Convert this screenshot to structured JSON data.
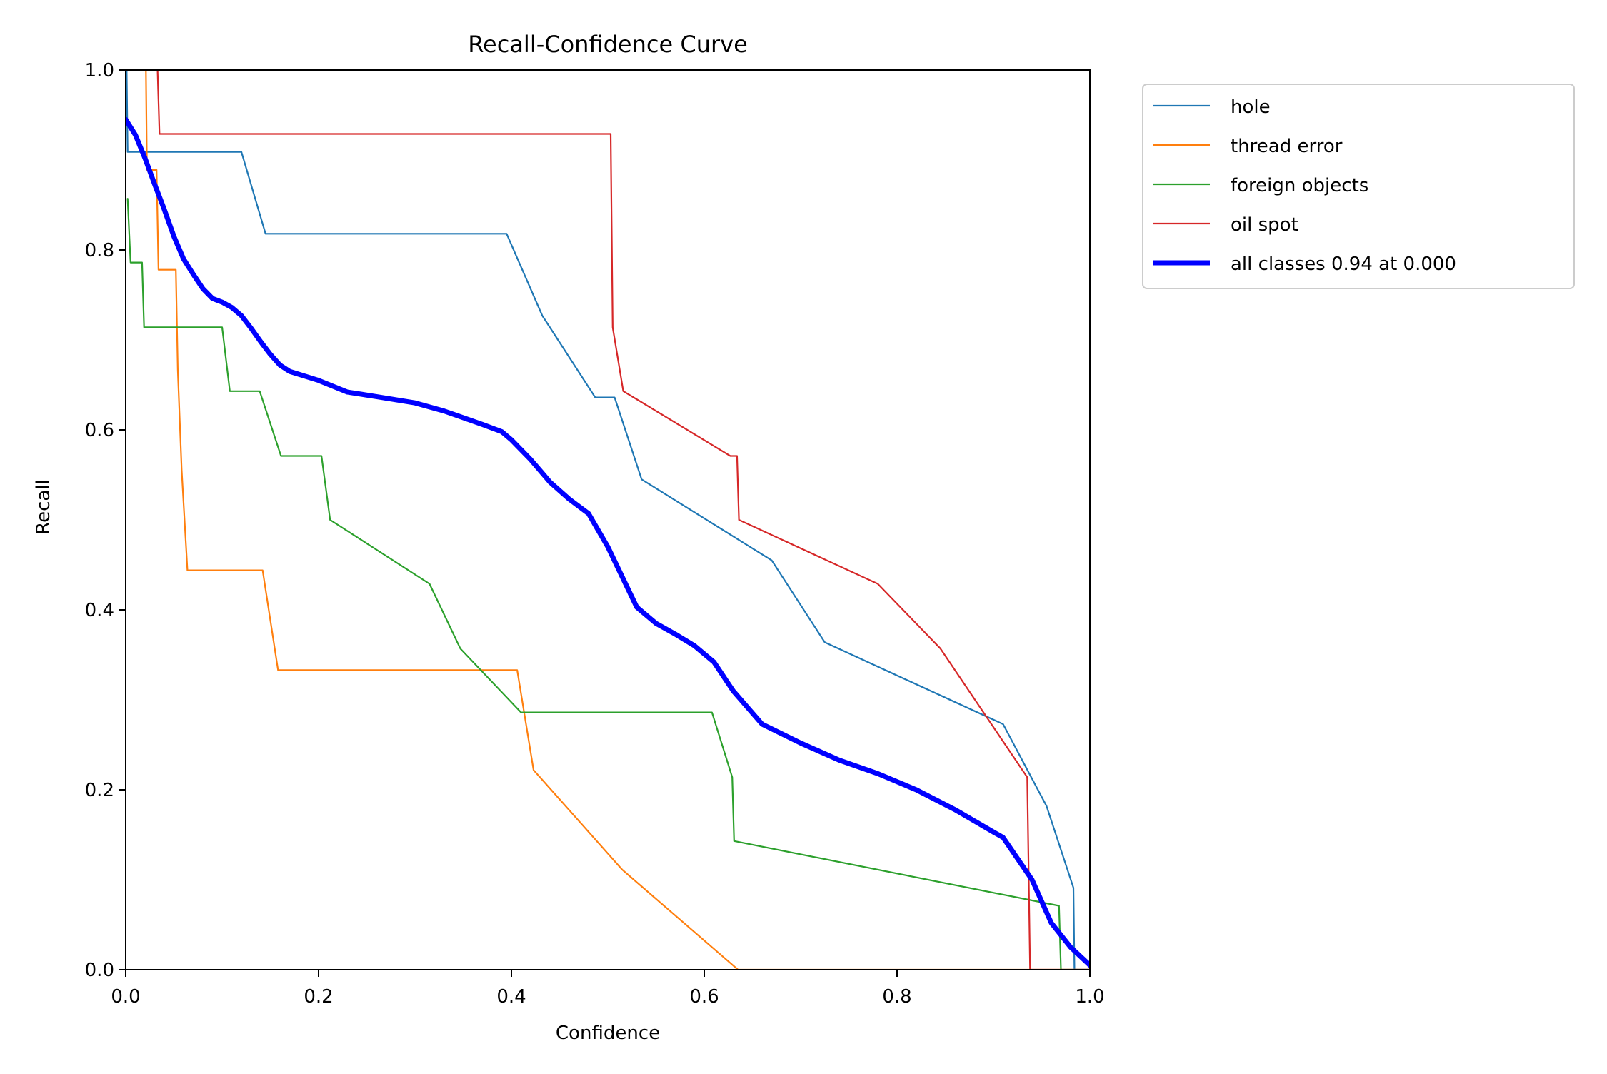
{
  "chart_data": {
    "type": "line",
    "title": "Recall-Confidence Curve",
    "xlabel": "Confidence",
    "ylabel": "Recall",
    "xlim": [
      0,
      1
    ],
    "ylim": [
      0,
      1
    ],
    "xticks": [
      "0.0",
      "0.2",
      "0.4",
      "0.6",
      "0.8",
      "1.0"
    ],
    "yticks": [
      "0.0",
      "0.2",
      "0.4",
      "0.6",
      "0.8",
      "1.0"
    ],
    "grid": false,
    "legend_position": "outside-top-right",
    "series": [
      {
        "name": "hole",
        "color": "#1f77b4",
        "bold": false,
        "points": [
          [
            0.001,
            1.0
          ],
          [
            0.002,
            0.909
          ],
          [
            0.12,
            0.909
          ],
          [
            0.145,
            0.818
          ],
          [
            0.395,
            0.818
          ],
          [
            0.432,
            0.727
          ],
          [
            0.487,
            0.636
          ],
          [
            0.507,
            0.636
          ],
          [
            0.535,
            0.545
          ],
          [
            0.67,
            0.455
          ],
          [
            0.725,
            0.364
          ],
          [
            0.91,
            0.273
          ],
          [
            0.955,
            0.182
          ],
          [
            0.983,
            0.091
          ],
          [
            0.984,
            0.0
          ],
          [
            1.0,
            0.0
          ]
        ]
      },
      {
        "name": "thread error",
        "color": "#ff7f0e",
        "bold": false,
        "points": [
          [
            0.021,
            1.0
          ],
          [
            0.022,
            0.889
          ],
          [
            0.032,
            0.889
          ],
          [
            0.034,
            0.778
          ],
          [
            0.052,
            0.778
          ],
          [
            0.054,
            0.667
          ],
          [
            0.058,
            0.556
          ],
          [
            0.064,
            0.444
          ],
          [
            0.142,
            0.444
          ],
          [
            0.158,
            0.333
          ],
          [
            0.406,
            0.333
          ],
          [
            0.423,
            0.222
          ],
          [
            0.515,
            0.111
          ],
          [
            0.635,
            0.0
          ],
          [
            1.0,
            0.0
          ]
        ]
      },
      {
        "name": "foreign objects",
        "color": "#2ca02c",
        "bold": false,
        "points": [
          [
            0.002,
            0.857
          ],
          [
            0.005,
            0.786
          ],
          [
            0.017,
            0.786
          ],
          [
            0.019,
            0.714
          ],
          [
            0.1,
            0.714
          ],
          [
            0.108,
            0.643
          ],
          [
            0.139,
            0.643
          ],
          [
            0.161,
            0.571
          ],
          [
            0.203,
            0.571
          ],
          [
            0.212,
            0.5
          ],
          [
            0.315,
            0.429
          ],
          [
            0.347,
            0.357
          ],
          [
            0.41,
            0.286
          ],
          [
            0.608,
            0.286
          ],
          [
            0.629,
            0.214
          ],
          [
            0.631,
            0.143
          ],
          [
            0.968,
            0.071
          ],
          [
            0.97,
            0.0
          ],
          [
            1.0,
            0.0
          ]
        ]
      },
      {
        "name": "oil spot",
        "color": "#d62728",
        "bold": false,
        "points": [
          [
            0.033,
            1.0
          ],
          [
            0.035,
            0.929
          ],
          [
            0.503,
            0.929
          ],
          [
            0.505,
            0.714
          ],
          [
            0.516,
            0.643
          ],
          [
            0.627,
            0.571
          ],
          [
            0.634,
            0.571
          ],
          [
            0.636,
            0.5
          ],
          [
            0.78,
            0.429
          ],
          [
            0.845,
            0.357
          ],
          [
            0.935,
            0.214
          ],
          [
            0.938,
            0.0
          ],
          [
            1.0,
            0.0
          ]
        ]
      },
      {
        "name": "all classes 0.94 at 0.000",
        "color": "#0000ff",
        "bold": true,
        "points": [
          [
            0.0,
            0.945
          ],
          [
            0.01,
            0.928
          ],
          [
            0.02,
            0.902
          ],
          [
            0.03,
            0.873
          ],
          [
            0.04,
            0.845
          ],
          [
            0.05,
            0.815
          ],
          [
            0.06,
            0.79
          ],
          [
            0.07,
            0.773
          ],
          [
            0.08,
            0.757
          ],
          [
            0.09,
            0.746
          ],
          [
            0.1,
            0.742
          ],
          [
            0.11,
            0.736
          ],
          [
            0.12,
            0.727
          ],
          [
            0.13,
            0.713
          ],
          [
            0.14,
            0.698
          ],
          [
            0.15,
            0.684
          ],
          [
            0.16,
            0.672
          ],
          [
            0.17,
            0.665
          ],
          [
            0.2,
            0.655
          ],
          [
            0.23,
            0.642
          ],
          [
            0.26,
            0.637
          ],
          [
            0.3,
            0.63
          ],
          [
            0.33,
            0.621
          ],
          [
            0.37,
            0.606
          ],
          [
            0.39,
            0.598
          ],
          [
            0.4,
            0.589
          ],
          [
            0.42,
            0.567
          ],
          [
            0.44,
            0.542
          ],
          [
            0.46,
            0.523
          ],
          [
            0.48,
            0.507
          ],
          [
            0.5,
            0.47
          ],
          [
            0.53,
            0.403
          ],
          [
            0.55,
            0.385
          ],
          [
            0.57,
            0.373
          ],
          [
            0.59,
            0.36
          ],
          [
            0.61,
            0.342
          ],
          [
            0.63,
            0.31
          ],
          [
            0.66,
            0.273
          ],
          [
            0.7,
            0.252
          ],
          [
            0.74,
            0.233
          ],
          [
            0.78,
            0.218
          ],
          [
            0.82,
            0.2
          ],
          [
            0.86,
            0.178
          ],
          [
            0.9,
            0.153
          ],
          [
            0.91,
            0.147
          ],
          [
            0.94,
            0.1
          ],
          [
            0.96,
            0.052
          ],
          [
            0.98,
            0.025
          ],
          [
            1.0,
            0.005
          ]
        ]
      }
    ]
  }
}
